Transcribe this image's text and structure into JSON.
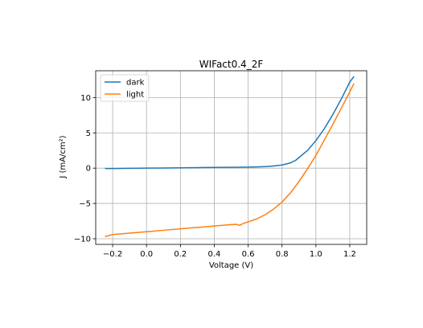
{
  "chart_data": {
    "type": "line",
    "title": "WIFact0.4_2F",
    "xlabel": "Voltage (V)",
    "ylabel": "J (mA/cm²)",
    "xlim": [
      -0.3,
      1.3
    ],
    "ylim": [
      -10.8,
      13.8
    ],
    "grid": true,
    "legend_position": "top-left",
    "xticks": [
      -0.2,
      0.0,
      0.2,
      0.4,
      0.6,
      0.8,
      1.0,
      1.2
    ],
    "xtick_labels": [
      "−0.2",
      "0.0",
      "0.2",
      "0.4",
      "0.6",
      "0.8",
      "1.0",
      "1.2"
    ],
    "yticks": [
      -10,
      -5,
      0,
      5,
      10
    ],
    "ytick_labels": [
      "−10",
      "−5",
      "0",
      "5",
      "10"
    ],
    "series": [
      {
        "name": "dark",
        "color": "#1f77b4",
        "x": [
          -0.245,
          -0.2,
          -0.1,
          0.0,
          0.1,
          0.2,
          0.3,
          0.4,
          0.5,
          0.6,
          0.65,
          0.7,
          0.75,
          0.8,
          0.85,
          0.88,
          0.9,
          0.95,
          1.0,
          1.05,
          1.1,
          1.15,
          1.2,
          1.225
        ],
        "y": [
          -0.05,
          -0.05,
          -0.02,
          0.0,
          0.02,
          0.05,
          0.08,
          0.1,
          0.12,
          0.15,
          0.18,
          0.22,
          0.3,
          0.45,
          0.75,
          1.1,
          1.5,
          2.5,
          3.9,
          5.6,
          7.6,
          9.8,
          12.2,
          13.0
        ]
      },
      {
        "name": "light",
        "color": "#ff7f0e",
        "x": [
          -0.245,
          -0.2,
          -0.15,
          -0.1,
          -0.05,
          0.0,
          0.1,
          0.2,
          0.3,
          0.4,
          0.45,
          0.5,
          0.53,
          0.55,
          0.57,
          0.6,
          0.65,
          0.7,
          0.75,
          0.8,
          0.85,
          0.9,
          0.95,
          1.0,
          1.05,
          1.1,
          1.15,
          1.2,
          1.225
        ],
        "y": [
          -9.7,
          -9.4,
          -9.3,
          -9.2,
          -9.1,
          -9.0,
          -8.8,
          -8.6,
          -8.4,
          -8.2,
          -8.1,
          -8.0,
          -7.95,
          -8.1,
          -7.85,
          -7.6,
          -7.2,
          -6.6,
          -5.8,
          -4.8,
          -3.5,
          -1.9,
          -0.1,
          1.8,
          4.0,
          6.2,
          8.5,
          10.8,
          12.0
        ]
      }
    ]
  }
}
